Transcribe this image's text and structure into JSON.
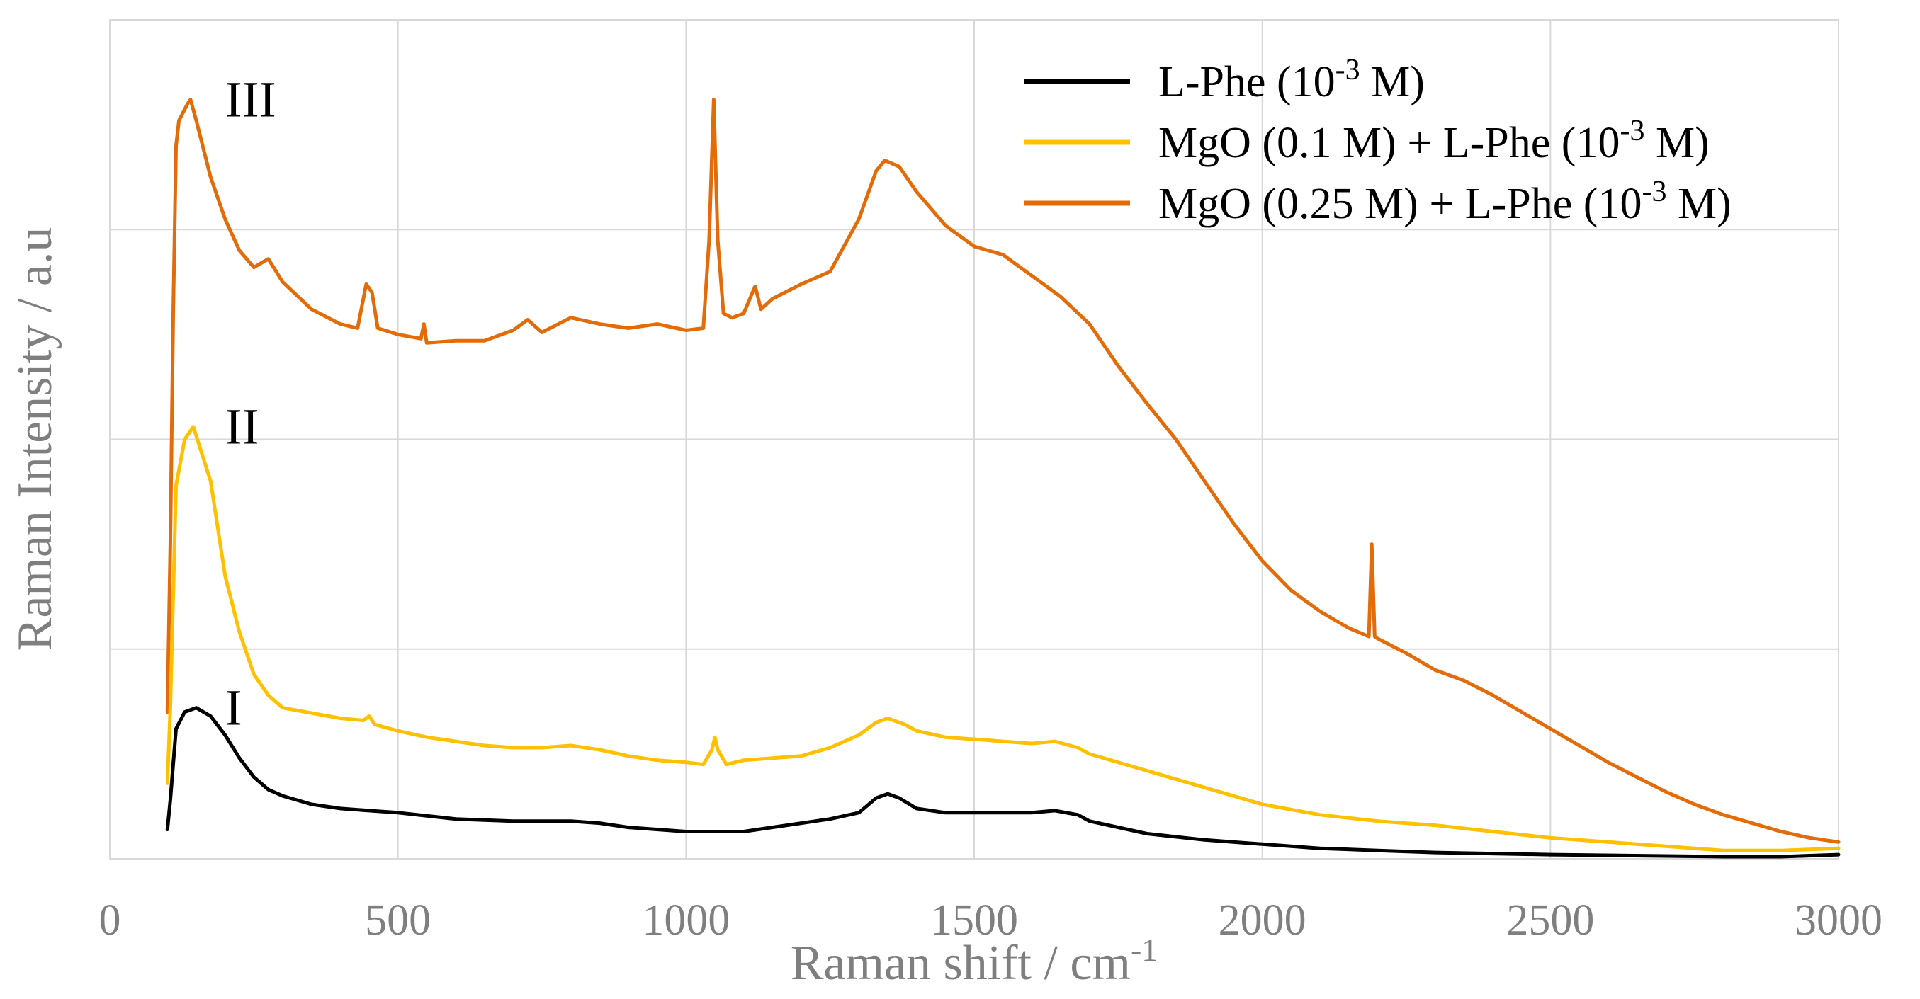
{
  "chart_data": {
    "type": "line",
    "xlabel": "Raman shift / cm",
    "xlabel_sup": "-1",
    "ylabel": "Raman Intensity / a.u",
    "xlim": [
      0,
      3000
    ],
    "ylim": [
      0,
      4
    ],
    "xticks": [
      "0",
      "500",
      "1000",
      "1500",
      "2000",
      "2500",
      "3000"
    ],
    "yticks_shown": false,
    "grid": true,
    "legend_position": "top-right",
    "series": [
      {
        "name": "L-Phe (10-3 M)",
        "legend_parts": [
          "L-Phe (10",
          "-3",
          " M)"
        ],
        "color": "#000000",
        "curve_label": "I",
        "points": [
          [
            100,
            0.14
          ],
          [
            105,
            0.28
          ],
          [
            115,
            0.62
          ],
          [
            130,
            0.7
          ],
          [
            150,
            0.72
          ],
          [
            175,
            0.68
          ],
          [
            200,
            0.59
          ],
          [
            225,
            0.48
          ],
          [
            250,
            0.39
          ],
          [
            275,
            0.33
          ],
          [
            300,
            0.3
          ],
          [
            350,
            0.26
          ],
          [
            400,
            0.24
          ],
          [
            450,
            0.23
          ],
          [
            500,
            0.22
          ],
          [
            600,
            0.19
          ],
          [
            700,
            0.18
          ],
          [
            800,
            0.18
          ],
          [
            850,
            0.17
          ],
          [
            900,
            0.15
          ],
          [
            1000,
            0.13
          ],
          [
            1100,
            0.13
          ],
          [
            1200,
            0.17
          ],
          [
            1250,
            0.19
          ],
          [
            1300,
            0.22
          ],
          [
            1330,
            0.29
          ],
          [
            1350,
            0.31
          ],
          [
            1370,
            0.29
          ],
          [
            1400,
            0.24
          ],
          [
            1450,
            0.22
          ],
          [
            1500,
            0.22
          ],
          [
            1550,
            0.22
          ],
          [
            1600,
            0.22
          ],
          [
            1640,
            0.23
          ],
          [
            1680,
            0.21
          ],
          [
            1700,
            0.18
          ],
          [
            1800,
            0.12
          ],
          [
            1900,
            0.09
          ],
          [
            2000,
            0.07
          ],
          [
            2100,
            0.05
          ],
          [
            2200,
            0.04
          ],
          [
            2300,
            0.03
          ],
          [
            2500,
            0.02
          ],
          [
            2800,
            0.01
          ],
          [
            2900,
            0.01
          ],
          [
            3000,
            0.02
          ]
        ]
      },
      {
        "name": "MgO (0.1 M)  + L-Phe (10-3 M)",
        "legend_parts": [
          "MgO (0.1 M)  + L-Phe (10",
          "-3",
          " M)"
        ],
        "color": "#ffc000",
        "curve_label": "II",
        "points": [
          [
            100,
            0.36
          ],
          [
            105,
            0.72
          ],
          [
            115,
            1.78
          ],
          [
            130,
            2.0
          ],
          [
            145,
            2.06
          ],
          [
            175,
            1.8
          ],
          [
            200,
            1.35
          ],
          [
            225,
            1.08
          ],
          [
            250,
            0.88
          ],
          [
            275,
            0.78
          ],
          [
            300,
            0.72
          ],
          [
            400,
            0.67
          ],
          [
            440,
            0.66
          ],
          [
            450,
            0.68
          ],
          [
            460,
            0.64
          ],
          [
            500,
            0.61
          ],
          [
            550,
            0.58
          ],
          [
            600,
            0.56
          ],
          [
            650,
            0.54
          ],
          [
            700,
            0.53
          ],
          [
            750,
            0.53
          ],
          [
            800,
            0.54
          ],
          [
            850,
            0.52
          ],
          [
            900,
            0.49
          ],
          [
            950,
            0.47
          ],
          [
            1000,
            0.46
          ],
          [
            1030,
            0.45
          ],
          [
            1045,
            0.52
          ],
          [
            1050,
            0.58
          ],
          [
            1055,
            0.52
          ],
          [
            1070,
            0.45
          ],
          [
            1100,
            0.47
          ],
          [
            1150,
            0.48
          ],
          [
            1200,
            0.49
          ],
          [
            1250,
            0.53
          ],
          [
            1300,
            0.59
          ],
          [
            1330,
            0.65
          ],
          [
            1350,
            0.67
          ],
          [
            1380,
            0.64
          ],
          [
            1400,
            0.61
          ],
          [
            1450,
            0.58
          ],
          [
            1500,
            0.57
          ],
          [
            1550,
            0.56
          ],
          [
            1600,
            0.55
          ],
          [
            1640,
            0.56
          ],
          [
            1680,
            0.53
          ],
          [
            1700,
            0.5
          ],
          [
            1800,
            0.42
          ],
          [
            1900,
            0.34
          ],
          [
            2000,
            0.26
          ],
          [
            2100,
            0.21
          ],
          [
            2200,
            0.18
          ],
          [
            2300,
            0.16
          ],
          [
            2400,
            0.13
          ],
          [
            2500,
            0.1
          ],
          [
            2600,
            0.08
          ],
          [
            2700,
            0.06
          ],
          [
            2800,
            0.04
          ],
          [
            2900,
            0.04
          ],
          [
            3000,
            0.05
          ]
        ]
      },
      {
        "name": "MgO (0.25 M) + L-Phe (10-3 M)",
        "legend_parts": [
          "MgO (0.25 M) + L-Phe (10",
          "-3",
          " M)"
        ],
        "color": "#e36c09",
        "curve_label": "III",
        "points": [
          [
            100,
            0.7
          ],
          [
            105,
            1.5
          ],
          [
            110,
            2.6
          ],
          [
            115,
            3.4
          ],
          [
            120,
            3.52
          ],
          [
            135,
            3.6
          ],
          [
            140,
            3.62
          ],
          [
            150,
            3.52
          ],
          [
            175,
            3.25
          ],
          [
            200,
            3.05
          ],
          [
            225,
            2.9
          ],
          [
            250,
            2.82
          ],
          [
            275,
            2.86
          ],
          [
            300,
            2.75
          ],
          [
            350,
            2.62
          ],
          [
            400,
            2.55
          ],
          [
            430,
            2.53
          ],
          [
            445,
            2.74
          ],
          [
            455,
            2.7
          ],
          [
            465,
            2.53
          ],
          [
            500,
            2.5
          ],
          [
            540,
            2.48
          ],
          [
            545,
            2.55
          ],
          [
            550,
            2.46
          ],
          [
            600,
            2.47
          ],
          [
            650,
            2.47
          ],
          [
            700,
            2.52
          ],
          [
            725,
            2.57
          ],
          [
            750,
            2.51
          ],
          [
            800,
            2.58
          ],
          [
            850,
            2.55
          ],
          [
            900,
            2.53
          ],
          [
            950,
            2.55
          ],
          [
            1000,
            2.52
          ],
          [
            1030,
            2.53
          ],
          [
            1040,
            2.95
          ],
          [
            1048,
            3.62
          ],
          [
            1055,
            2.95
          ],
          [
            1065,
            2.6
          ],
          [
            1080,
            2.58
          ],
          [
            1100,
            2.6
          ],
          [
            1120,
            2.73
          ],
          [
            1130,
            2.62
          ],
          [
            1150,
            2.67
          ],
          [
            1200,
            2.74
          ],
          [
            1250,
            2.8
          ],
          [
            1300,
            3.05
          ],
          [
            1330,
            3.28
          ],
          [
            1345,
            3.33
          ],
          [
            1370,
            3.3
          ],
          [
            1400,
            3.18
          ],
          [
            1450,
            3.02
          ],
          [
            1500,
            2.92
          ],
          [
            1550,
            2.88
          ],
          [
            1600,
            2.78
          ],
          [
            1650,
            2.68
          ],
          [
            1700,
            2.55
          ],
          [
            1750,
            2.35
          ],
          [
            1800,
            2.17
          ],
          [
            1850,
            2.0
          ],
          [
            1900,
            1.8
          ],
          [
            1950,
            1.6
          ],
          [
            2000,
            1.42
          ],
          [
            2050,
            1.28
          ],
          [
            2100,
            1.18
          ],
          [
            2150,
            1.1
          ],
          [
            2185,
            1.06
          ],
          [
            2190,
            1.5
          ],
          [
            2195,
            1.06
          ],
          [
            2200,
            1.05
          ],
          [
            2250,
            0.98
          ],
          [
            2300,
            0.9
          ],
          [
            2350,
            0.85
          ],
          [
            2400,
            0.78
          ],
          [
            2450,
            0.7
          ],
          [
            2500,
            0.62
          ],
          [
            2550,
            0.54
          ],
          [
            2600,
            0.46
          ],
          [
            2650,
            0.39
          ],
          [
            2700,
            0.32
          ],
          [
            2750,
            0.26
          ],
          [
            2800,
            0.21
          ],
          [
            2850,
            0.17
          ],
          [
            2900,
            0.13
          ],
          [
            2950,
            0.1
          ],
          [
            3000,
            0.08
          ]
        ]
      }
    ]
  }
}
